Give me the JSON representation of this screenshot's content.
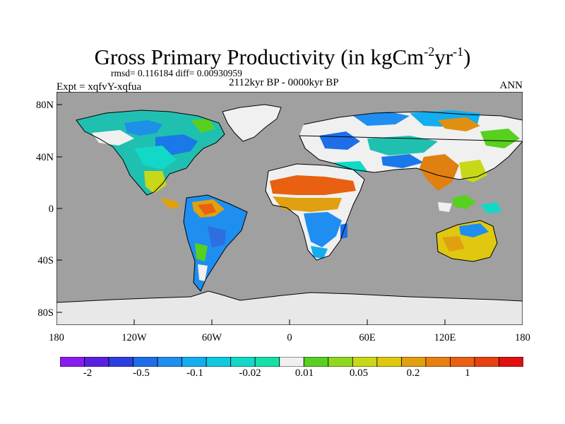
{
  "title": {
    "main": "Gross Primary Productivity (in kgCm",
    "sup1": "-2",
    "mid": "yr",
    "sup2": "-1",
    "end": ")"
  },
  "stats": "rmsd= 0.116184 diff= 0.00930959",
  "experiment": "Expt = xqfvY-xqfua",
  "period": "2112kyr BP - 0000kyr BP",
  "season": "ANN",
  "colors": {
    "ocean": "#a0a0a0",
    "ice": "#e8e8e8",
    "land_neutral": "#f0f0f0",
    "palette": [
      "#8b1cf0",
      "#5a20e0",
      "#2d3ee0",
      "#1e6ee8",
      "#1e8ef0",
      "#12aef0",
      "#10c8e0",
      "#12d8c8",
      "#14e0a8",
      "#f0f0f0",
      "#58d020",
      "#90d820",
      "#c8d818",
      "#e0c810",
      "#e0a010",
      "#e88010",
      "#e86010",
      "#e84010",
      "#e01010"
    ]
  },
  "colorbar": {
    "labels": [
      "-2",
      "-0.5",
      "-0.1",
      "-0.02",
      "0.01",
      "0.05",
      "0.2",
      "1"
    ]
  },
  "axes": {
    "y": [
      "80N",
      "40N",
      "0",
      "40S",
      "80S"
    ],
    "x": [
      "180",
      "120W",
      "60W",
      "0",
      "60E",
      "120E",
      "180"
    ]
  }
}
